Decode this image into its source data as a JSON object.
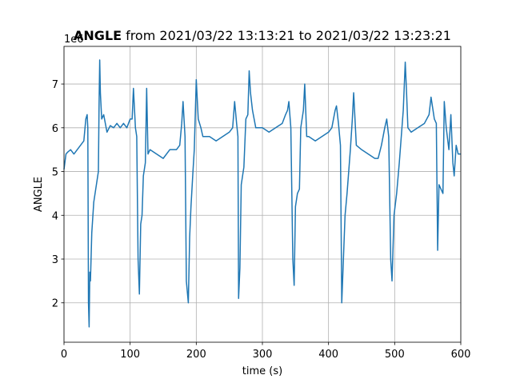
{
  "chart_data": {
    "type": "line",
    "title": [
      "ANGLE",
      "from 2021/03/22 13:13:21 to 2021/03/22 13:23:21"
    ],
    "offset_label": "1e6",
    "xlabel": "time (s)",
    "ylabel": "ANGLE",
    "xlim": [
      0,
      600
    ],
    "ylim": [
      1.1,
      7.86
    ],
    "xticks": [
      0,
      100,
      200,
      300,
      400,
      500,
      600
    ],
    "yticks": [
      2,
      3,
      4,
      5,
      6,
      7
    ],
    "grid": true,
    "x": [
      0,
      3,
      6,
      10,
      15,
      20,
      25,
      30,
      33,
      35,
      36,
      37,
      38,
      39,
      40,
      42,
      45,
      48,
      50,
      52,
      53,
      54,
      55,
      57,
      60,
      65,
      70,
      75,
      80,
      85,
      90,
      95,
      100,
      103,
      105,
      108,
      110,
      112,
      114,
      116,
      118,
      120,
      123,
      125,
      127,
      130,
      140,
      150,
      160,
      170,
      175,
      178,
      180,
      183,
      185,
      188,
      190,
      192,
      195,
      197,
      200,
      203,
      207,
      210,
      220,
      230,
      240,
      250,
      255,
      258,
      261,
      263,
      264,
      266,
      268,
      272,
      275,
      278,
      280,
      282,
      285,
      290,
      300,
      310,
      320,
      330,
      335,
      338,
      340,
      343,
      346,
      348,
      350,
      353,
      356,
      358,
      362,
      364,
      367,
      370,
      380,
      390,
      400,
      405,
      410,
      412,
      415,
      418,
      420,
      422,
      425,
      428,
      430,
      433,
      436,
      438,
      442,
      450,
      460,
      470,
      475,
      480,
      485,
      488,
      491,
      494,
      496,
      499,
      503,
      507,
      510,
      513,
      516,
      518,
      520,
      525,
      535,
      545,
      552,
      555,
      560,
      563,
      565,
      567,
      570,
      573,
      575,
      578,
      582,
      585,
      588,
      590,
      593,
      596,
      600
    ],
    "series": [
      {
        "name": "ANGLE",
        "color": "#1f77b4",
        "values": [
          5.05,
          5.4,
          5.45,
          5.5,
          5.4,
          5.5,
          5.6,
          5.7,
          6.2,
          6.3,
          6.0,
          2.0,
          1.45,
          2.7,
          2.5,
          3.6,
          4.3,
          4.6,
          4.8,
          5.0,
          6.5,
          7.55,
          6.8,
          6.2,
          6.3,
          5.9,
          6.05,
          6.0,
          6.1,
          6.0,
          6.1,
          6.0,
          6.2,
          6.2,
          6.9,
          6.0,
          5.8,
          3.0,
          2.2,
          3.8,
          4.0,
          4.9,
          5.2,
          6.9,
          5.4,
          5.5,
          5.4,
          5.3,
          5.5,
          5.5,
          5.6,
          6.1,
          6.6,
          5.8,
          2.5,
          2.0,
          3.5,
          4.2,
          5.0,
          5.5,
          7.1,
          6.2,
          6.0,
          5.8,
          5.8,
          5.7,
          5.8,
          5.9,
          6.0,
          6.6,
          6.1,
          5.8,
          2.1,
          2.8,
          4.7,
          5.1,
          6.2,
          6.3,
          7.3,
          6.8,
          6.4,
          6.0,
          6.0,
          5.9,
          6.0,
          6.1,
          6.3,
          6.4,
          6.6,
          6.0,
          3.0,
          2.4,
          4.2,
          4.5,
          4.6,
          6.0,
          6.4,
          7.0,
          5.8,
          5.8,
          5.7,
          5.8,
          5.9,
          6.0,
          6.4,
          6.5,
          6.1,
          5.6,
          2.0,
          2.8,
          4.0,
          4.5,
          4.9,
          5.5,
          6.2,
          6.8,
          5.6,
          5.5,
          5.4,
          5.3,
          5.3,
          5.6,
          6.0,
          6.2,
          5.8,
          3.0,
          2.5,
          4.0,
          4.5,
          5.2,
          5.8,
          6.4,
          7.5,
          6.8,
          6.0,
          5.9,
          6.0,
          6.1,
          6.3,
          6.7,
          6.2,
          6.1,
          3.2,
          4.7,
          4.6,
          4.5,
          6.6,
          6.0,
          5.5,
          6.3,
          5.2,
          4.9,
          5.6,
          5.4,
          5.4
        ]
      }
    ]
  }
}
